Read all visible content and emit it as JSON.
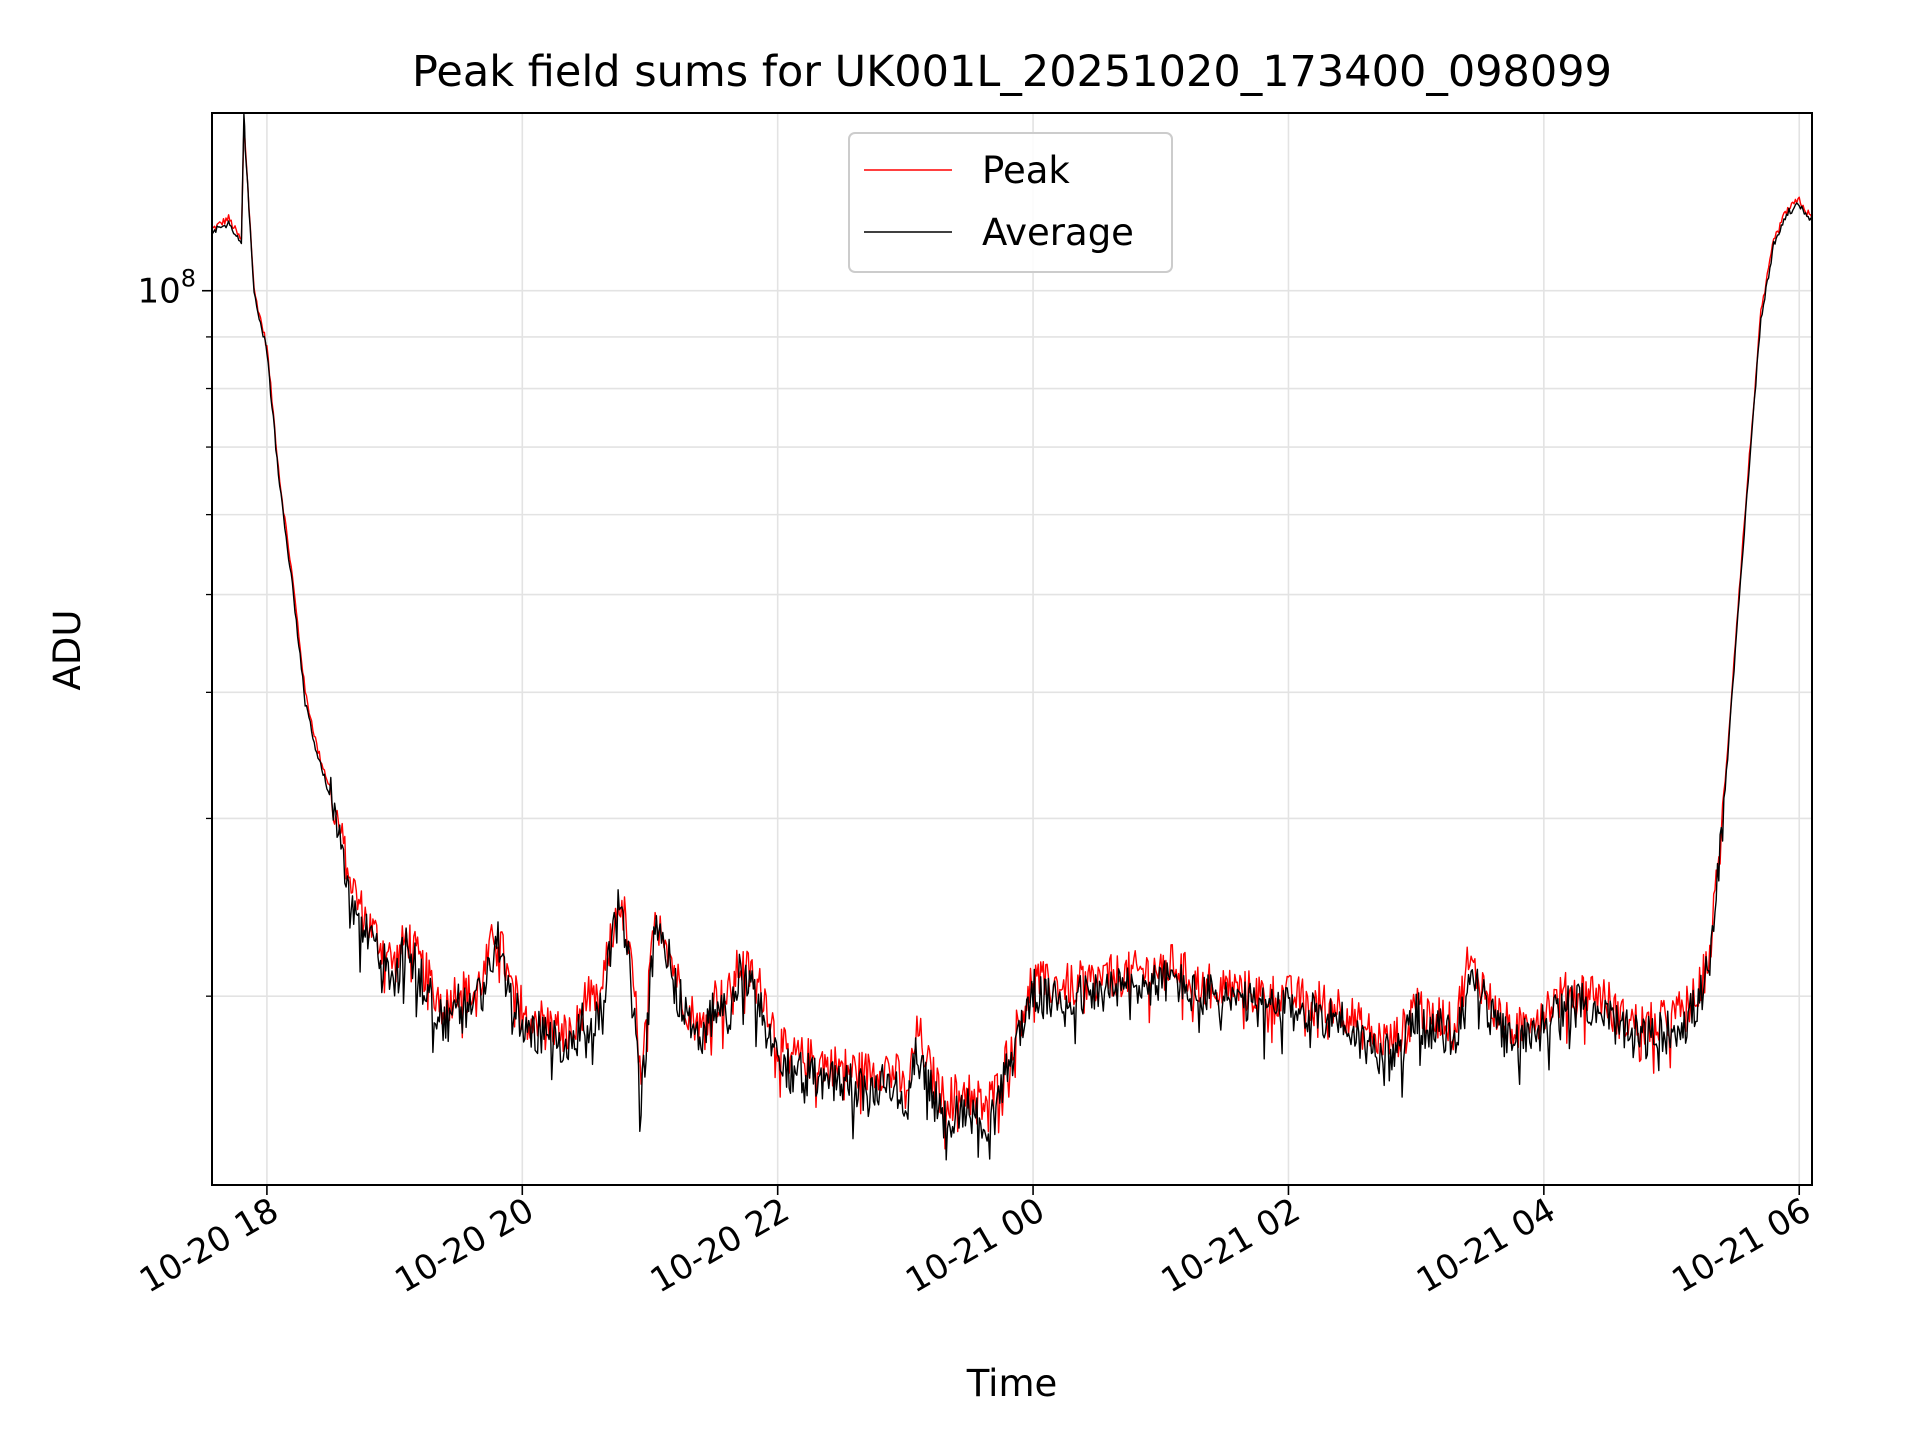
{
  "chart_data": {
    "type": "line",
    "title": "Peak field sums for UK001L_20251020_173400_098099",
    "xlabel": "Time",
    "ylabel": "ADU",
    "y_scale": "log",
    "ylim": [
      13000000,
      150000000
    ],
    "xlim_hours": [
      17.57,
      30.1
    ],
    "grid": true,
    "legend_position": "top-center",
    "x_ticks": [
      {
        "hour": 18,
        "label": "10-20 18"
      },
      {
        "hour": 20,
        "label": "10-20 20"
      },
      {
        "hour": 22,
        "label": "10-20 22"
      },
      {
        "hour": 24,
        "label": "10-21 00"
      },
      {
        "hour": 26,
        "label": "10-21 02"
      },
      {
        "hour": 28,
        "label": "10-21 04"
      },
      {
        "hour": 30,
        "label": "10-21 06"
      }
    ],
    "y_ticks": [
      {
        "value": 100000000,
        "base": "10",
        "exp": "8"
      }
    ],
    "y_minor_ticks": [
      20000000,
      30000000,
      40000000,
      50000000,
      60000000,
      70000000,
      80000000,
      90000000
    ],
    "series": [
      {
        "name": "Peak",
        "color": "#ff0000",
        "hours": [
          17.57,
          17.7,
          17.8,
          17.82,
          17.83,
          17.9,
          18.0,
          18.1,
          18.2,
          18.3,
          18.4,
          18.5,
          18.6,
          18.7,
          18.8,
          18.9,
          19.0,
          19.1,
          19.2,
          19.3,
          19.4,
          19.5,
          19.6,
          19.7,
          19.8,
          19.9,
          20.0,
          20.2,
          20.4,
          20.5,
          20.6,
          20.7,
          20.75,
          20.8,
          20.9,
          20.93,
          21.0,
          21.05,
          21.1,
          21.2,
          21.3,
          21.4,
          21.5,
          21.6,
          21.7,
          21.8,
          21.9,
          22.0,
          22.1,
          22.3,
          22.5,
          22.7,
          22.9,
          23.0,
          23.1,
          23.2,
          23.3,
          23.4,
          23.5,
          23.6,
          23.7,
          23.8,
          23.9,
          24.0,
          24.1,
          24.3,
          24.5,
          24.7,
          24.9,
          25.1,
          25.3,
          25.4,
          25.6,
          25.8,
          26.0,
          26.2,
          26.4,
          26.6,
          26.8,
          26.9,
          27.0,
          27.1,
          27.2,
          27.3,
          27.4,
          27.5,
          27.6,
          27.7,
          27.8,
          27.9,
          28.0,
          28.2,
          28.4,
          28.5,
          28.6,
          28.8,
          29.0,
          29.2,
          29.3,
          29.4,
          29.5,
          29.6,
          29.7,
          29.8,
          29.9,
          30.0,
          30.05,
          30.1
        ],
        "values": [
          115000000,
          118000000,
          112000000,
          145000000,
          140000000,
          100000000,
          88000000,
          65000000,
          52000000,
          40000000,
          35000000,
          32000000,
          28000000,
          25000000,
          23500000,
          22500000,
          21500000,
          23000000,
          21500000,
          20500000,
          19500000,
          20500000,
          20000000,
          21000000,
          23500000,
          20500000,
          19500000,
          18800000,
          18200000,
          20000000,
          19500000,
          23000000,
          25000000,
          24000000,
          19000000,
          16000000,
          21000000,
          24500000,
          23500000,
          21000000,
          19500000,
          18500000,
          20000000,
          19800000,
          21500000,
          21000000,
          20000000,
          18000000,
          17400000,
          17300000,
          17000000,
          16800000,
          17100000,
          16000000,
          18500000,
          16800000,
          15800000,
          16000000,
          16200000,
          15600000,
          16000000,
          17500000,
          19000000,
          21000000,
          20500000,
          20500000,
          20800000,
          21000000,
          21200000,
          21500000,
          20500000,
          20700000,
          20300000,
          20100000,
          20000000,
          19800000,
          19600000,
          18500000,
          18000000,
          18500000,
          20000000,
          18800000,
          19200000,
          18500000,
          21500000,
          20800000,
          19500000,
          18800000,
          18500000,
          19200000,
          19500000,
          20200000,
          20200000,
          19800000,
          19000000,
          18700000,
          19000000,
          20000000,
          22000000,
          30000000,
          45000000,
          66000000,
          95000000,
          112000000,
          120000000,
          123000000,
          120000000,
          118000000
        ]
      },
      {
        "name": "Average",
        "color": "#000000",
        "hours": [
          17.57,
          17.7,
          17.8,
          17.82,
          17.83,
          17.9,
          18.0,
          18.1,
          18.2,
          18.3,
          18.4,
          18.5,
          18.6,
          18.7,
          18.8,
          18.9,
          19.0,
          19.1,
          19.2,
          19.3,
          19.4,
          19.5,
          19.6,
          19.7,
          19.8,
          19.9,
          20.0,
          20.2,
          20.4,
          20.5,
          20.6,
          20.7,
          20.75,
          20.8,
          20.9,
          20.93,
          21.0,
          21.05,
          21.1,
          21.2,
          21.3,
          21.4,
          21.5,
          21.6,
          21.7,
          21.8,
          21.9,
          22.0,
          22.1,
          22.3,
          22.5,
          22.7,
          22.9,
          23.0,
          23.1,
          23.2,
          23.3,
          23.4,
          23.5,
          23.6,
          23.7,
          23.8,
          23.9,
          24.0,
          24.1,
          24.3,
          24.5,
          24.7,
          24.9,
          25.1,
          25.3,
          25.4,
          25.6,
          25.8,
          26.0,
          26.2,
          26.4,
          26.6,
          26.8,
          26.9,
          27.0,
          27.1,
          27.2,
          27.3,
          27.4,
          27.5,
          27.6,
          27.7,
          27.8,
          27.9,
          28.0,
          28.2,
          28.4,
          28.5,
          28.6,
          28.8,
          29.0,
          29.2,
          29.3,
          29.4,
          29.5,
          29.6,
          29.7,
          29.8,
          29.9,
          30.0,
          30.05,
          30.1
        ],
        "values": [
          114000000,
          117000000,
          111000000,
          150000000,
          139000000,
          99000000,
          87000000,
          64000000,
          51000000,
          39000000,
          34500000,
          31500000,
          27000000,
          24000000,
          22800000,
          21800000,
          20800000,
          22500000,
          20800000,
          19800000,
          18800000,
          19800000,
          19300000,
          20300000,
          23000000,
          19800000,
          18800000,
          18200000,
          17700000,
          19300000,
          19000000,
          22500000,
          24500000,
          23500000,
          18000000,
          15500000,
          20500000,
          24000000,
          23000000,
          20400000,
          18800000,
          17800000,
          19300000,
          19100000,
          21000000,
          20400000,
          19300000,
          17300000,
          16800000,
          16700000,
          16400000,
          16100000,
          16400000,
          15400000,
          17900000,
          16100000,
          15100000,
          15300000,
          15500000,
          14900000,
          15300000,
          16900000,
          18500000,
          20300000,
          19800000,
          19900000,
          20200000,
          20400000,
          20500000,
          20800000,
          19900000,
          20100000,
          19700000,
          19500000,
          19400000,
          19200000,
          19000000,
          17900000,
          17400000,
          17900000,
          19400000,
          18200000,
          18600000,
          17900000,
          21000000,
          20300000,
          18900000,
          18200000,
          17900000,
          18600000,
          18900000,
          19600000,
          19600000,
          19300000,
          18500000,
          18200000,
          18500000,
          19500000,
          21500000,
          29500000,
          44000000,
          65000000,
          94000000,
          111000000,
          119000000,
          122000000,
          119000000,
          117000000
        ]
      }
    ]
  }
}
